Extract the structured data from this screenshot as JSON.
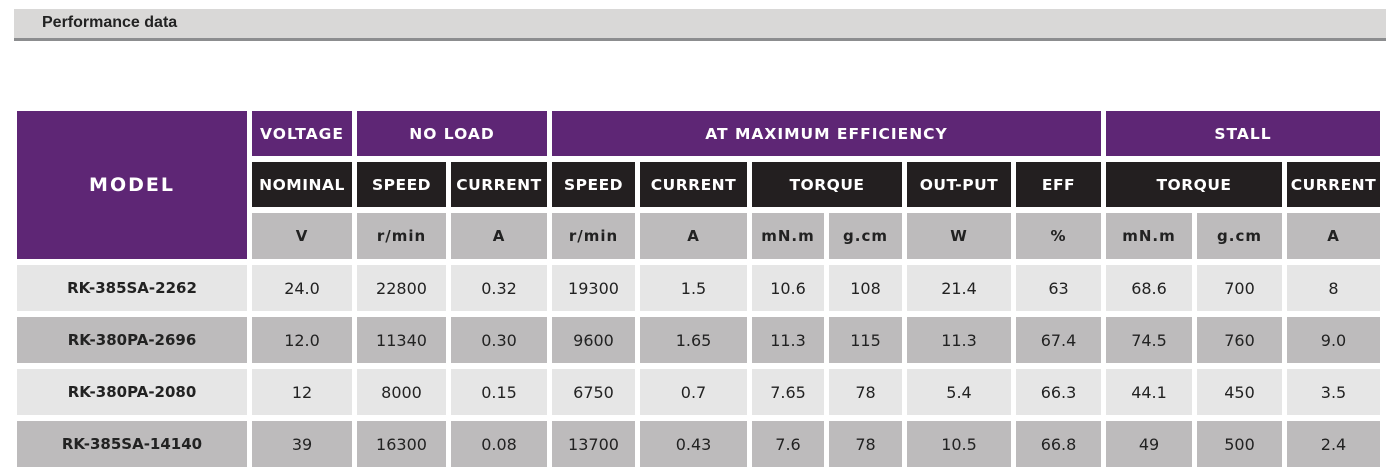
{
  "title": "Performance data",
  "colors": {
    "header_purple": "#5e2675",
    "subheader_black": "#231f20",
    "unit_gray": "#bdbbbc",
    "row_light": "#e6e6e6",
    "row_dark": "#bdbbbc"
  },
  "header": {
    "model": "MODEL",
    "groups": [
      "VOLTAGE",
      "NO LOAD",
      "AT MAXIMUM EFFICIENCY",
      "STALL"
    ],
    "sub": [
      "NOMINAL",
      "SPEED",
      "CURRENT",
      "SPEED",
      "CURRENT",
      "TORQUE",
      "OUT-PUT",
      "EFF",
      "TORQUE",
      "CURRENT"
    ],
    "units": [
      "V",
      "r/min",
      "A",
      "r/min",
      "A",
      "mN.m",
      "g.cm",
      "W",
      "%",
      "mN.m",
      "g.cm",
      "A"
    ]
  },
  "rows": [
    [
      "RK-385SA-2262",
      "24.0",
      "22800",
      "0.32",
      "19300",
      "1.5",
      "10.6",
      "108",
      "21.4",
      "63",
      "68.6",
      "700",
      "8"
    ],
    [
      "RK-380PA-2696",
      "12.0",
      "11340",
      "0.30",
      "9600",
      "1.65",
      "11.3",
      "115",
      "11.3",
      "67.4",
      "74.5",
      "760",
      "9.0"
    ],
    [
      "RK-380PA-2080",
      "12",
      "8000",
      "0.15",
      "6750",
      "0.7",
      "7.65",
      "78",
      "5.4",
      "66.3",
      "44.1",
      "450",
      "3.5"
    ],
    [
      "RK-385SA-14140",
      "39",
      "16300",
      "0.08",
      "13700",
      "0.43",
      "7.6",
      "78",
      "10.5",
      "66.8",
      "49",
      "500",
      "2.4"
    ]
  ]
}
